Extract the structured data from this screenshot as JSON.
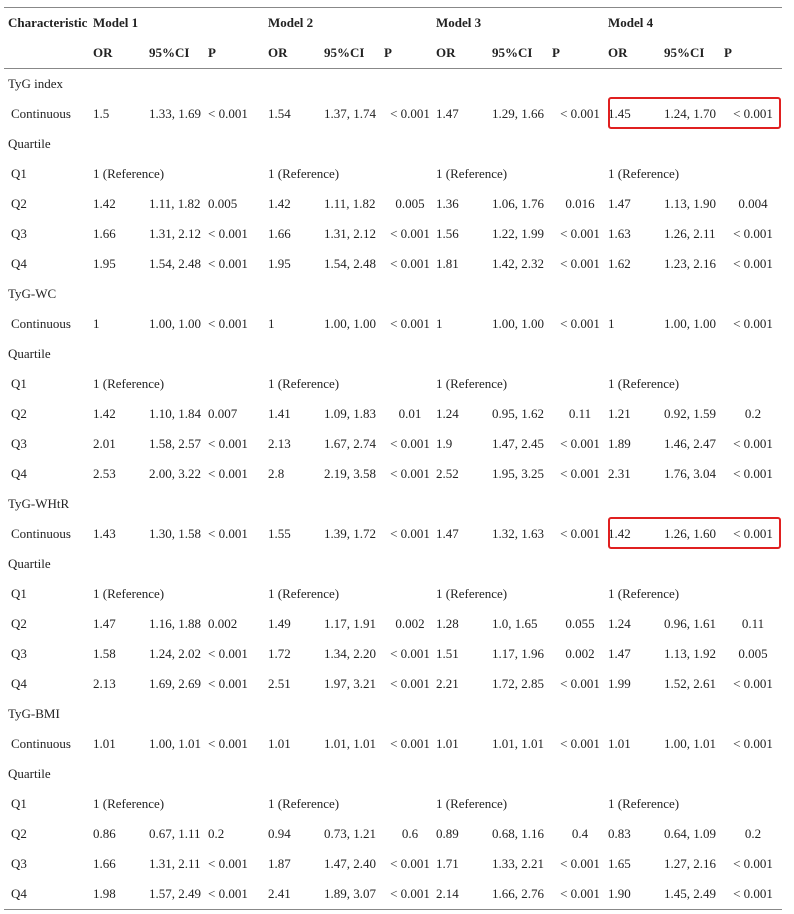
{
  "header": {
    "characteristic": "Characteristic",
    "models": [
      "Model 1",
      "Model 2",
      "Model 3",
      "Model 4"
    ],
    "subcols": [
      "OR",
      "95%CI",
      "P"
    ]
  },
  "highlight_color": "#e02020",
  "highlighted_rows": [
    "TyG index / Continuous / Model 4",
    "TyG-WHtR / Continuous / Model 4"
  ],
  "rows": [
    {
      "type": "section",
      "label": "TyG index"
    },
    {
      "type": "data",
      "label": "Continuous",
      "cells": [
        [
          "1.5",
          "1.33, 1.69",
          "< 0.001"
        ],
        [
          "1.54",
          "1.37, 1.74",
          "< 0.001"
        ],
        [
          "1.47",
          "1.29, 1.66",
          "< 0.001"
        ],
        [
          "1.45",
          "1.24, 1.70",
          "< 0.001"
        ]
      ]
    },
    {
      "type": "section",
      "label": "Quartile"
    },
    {
      "type": "ref",
      "label": "Q1",
      "ref": "1 (Reference)"
    },
    {
      "type": "data",
      "label": "Q2",
      "cells": [
        [
          "1.42",
          "1.11, 1.82",
          "0.005"
        ],
        [
          "1.42",
          "1.11, 1.82",
          "0.005"
        ],
        [
          "1.36",
          "1.06, 1.76",
          "0.016"
        ],
        [
          "1.47",
          "1.13, 1.90",
          "0.004"
        ]
      ]
    },
    {
      "type": "data",
      "label": "Q3",
      "cells": [
        [
          "1.66",
          "1.31, 2.12",
          "< 0.001"
        ],
        [
          "1.66",
          "1.31, 2.12",
          "< 0.001"
        ],
        [
          "1.56",
          "1.22, 1.99",
          "< 0.001"
        ],
        [
          "1.63",
          "1.26, 2.11",
          "< 0.001"
        ]
      ]
    },
    {
      "type": "data",
      "label": "Q4",
      "cells": [
        [
          "1.95",
          "1.54, 2.48",
          "< 0.001"
        ],
        [
          "1.95",
          "1.54, 2.48",
          "< 0.001"
        ],
        [
          "1.81",
          "1.42, 2.32",
          "< 0.001"
        ],
        [
          "1.62",
          "1.23, 2.16",
          "< 0.001"
        ]
      ]
    },
    {
      "type": "section",
      "label": "TyG-WC"
    },
    {
      "type": "data",
      "label": "Continuous",
      "cells": [
        [
          "1",
          "1.00, 1.00",
          "< 0.001"
        ],
        [
          "1",
          "1.00, 1.00",
          "< 0.001"
        ],
        [
          "1",
          "1.00, 1.00",
          "< 0.001"
        ],
        [
          "1",
          "1.00, 1.00",
          "< 0.001"
        ]
      ]
    },
    {
      "type": "section",
      "label": "Quartile"
    },
    {
      "type": "ref",
      "label": "Q1",
      "ref": "1 (Reference)"
    },
    {
      "type": "data",
      "label": "Q2",
      "cells": [
        [
          "1.42",
          "1.10, 1.84",
          "0.007"
        ],
        [
          "1.41",
          "1.09, 1.83",
          "0.01"
        ],
        [
          "1.24",
          "0.95, 1.62",
          "0.11"
        ],
        [
          "1.21",
          "0.92, 1.59",
          "0.2"
        ]
      ]
    },
    {
      "type": "data",
      "label": "Q3",
      "cells": [
        [
          "2.01",
          "1.58, 2.57",
          "< 0.001"
        ],
        [
          "2.13",
          "1.67, 2.74",
          "< 0.001"
        ],
        [
          "1.9",
          "1.47, 2.45",
          "< 0.001"
        ],
        [
          "1.89",
          "1.46, 2.47",
          "< 0.001"
        ]
      ]
    },
    {
      "type": "data",
      "label": "Q4",
      "cells": [
        [
          "2.53",
          "2.00, 3.22",
          "< 0.001"
        ],
        [
          "2.8",
          "2.19, 3.58",
          "< 0.001"
        ],
        [
          "2.52",
          "1.95, 3.25",
          "< 0.001"
        ],
        [
          "2.31",
          "1.76, 3.04",
          "< 0.001"
        ]
      ]
    },
    {
      "type": "section",
      "label": "TyG-WHtR"
    },
    {
      "type": "data",
      "label": "Continuous",
      "cells": [
        [
          "1.43",
          "1.30, 1.58",
          "< 0.001"
        ],
        [
          "1.55",
          "1.39, 1.72",
          "< 0.001"
        ],
        [
          "1.47",
          "1.32, 1.63",
          "< 0.001"
        ],
        [
          "1.42",
          "1.26, 1.60",
          "< 0.001"
        ]
      ]
    },
    {
      "type": "section",
      "label": "Quartile"
    },
    {
      "type": "ref",
      "label": "Q1",
      "ref": "1 (Reference)"
    },
    {
      "type": "data",
      "label": "Q2",
      "cells": [
        [
          "1.47",
          "1.16, 1.88",
          "0.002"
        ],
        [
          "1.49",
          "1.17, 1.91",
          "0.002"
        ],
        [
          "1.28",
          "1.0, 1.65",
          "0.055"
        ],
        [
          "1.24",
          "0.96, 1.61",
          "0.11"
        ]
      ]
    },
    {
      "type": "data",
      "label": "Q3",
      "cells": [
        [
          "1.58",
          "1.24, 2.02",
          "< 0.001"
        ],
        [
          "1.72",
          "1.34, 2.20",
          "< 0.001"
        ],
        [
          "1.51",
          "1.17, 1.96",
          "0.002"
        ],
        [
          "1.47",
          "1.13, 1.92",
          "0.005"
        ]
      ]
    },
    {
      "type": "data",
      "label": "Q4",
      "cells": [
        [
          "2.13",
          "1.69, 2.69",
          "< 0.001"
        ],
        [
          "2.51",
          "1.97, 3.21",
          "< 0.001"
        ],
        [
          "2.21",
          "1.72, 2.85",
          "< 0.001"
        ],
        [
          "1.99",
          "1.52, 2.61",
          "< 0.001"
        ]
      ]
    },
    {
      "type": "section",
      "label": "TyG-BMI"
    },
    {
      "type": "data",
      "label": "Continuous",
      "cells": [
        [
          "1.01",
          "1.00, 1.01",
          "< 0.001"
        ],
        [
          "1.01",
          "1.01, 1.01",
          "< 0.001"
        ],
        [
          "1.01",
          "1.01, 1.01",
          "< 0.001"
        ],
        [
          "1.01",
          "1.00, 1.01",
          "< 0.001"
        ]
      ]
    },
    {
      "type": "section",
      "label": "Quartile"
    },
    {
      "type": "ref",
      "label": "Q1",
      "ref": "1 (Reference)"
    },
    {
      "type": "data",
      "label": "Q2",
      "cells": [
        [
          "0.86",
          "0.67, 1.11",
          "0.2"
        ],
        [
          "0.94",
          "0.73, 1.21",
          "0.6"
        ],
        [
          "0.89",
          "0.68, 1.16",
          "0.4"
        ],
        [
          "0.83",
          "0.64, 1.09",
          "0.2"
        ]
      ]
    },
    {
      "type": "data",
      "label": "Q3",
      "cells": [
        [
          "1.66",
          "1.31, 2.11",
          "< 0.001"
        ],
        [
          "1.87",
          "1.47, 2.40",
          "< 0.001"
        ],
        [
          "1.71",
          "1.33, 2.21",
          "< 0.001"
        ],
        [
          "1.65",
          "1.27, 2.16",
          "< 0.001"
        ]
      ]
    },
    {
      "type": "data",
      "label": "Q4",
      "cells": [
        [
          "1.98",
          "1.57, 2.49",
          "< 0.001"
        ],
        [
          "2.41",
          "1.89, 3.07",
          "< 0.001"
        ],
        [
          "2.14",
          "1.66, 2.76",
          "< 0.001"
        ],
        [
          "1.90",
          "1.45, 2.49",
          "< 0.001"
        ]
      ]
    }
  ]
}
